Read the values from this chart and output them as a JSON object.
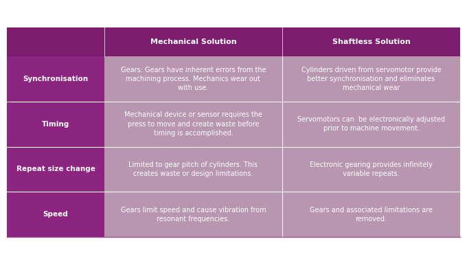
{
  "bg_color": "#ffffff",
  "header_bg": "#7B1C6E",
  "row_bg_dark": "#8B2580",
  "row_bg_light": "#B896B0",
  "header_text_color": "#ffffff",
  "row_label_color": "#ffffff",
  "cell_text_color": "#ffffff",
  "col_headers": [
    "Mechanical Solution",
    "Shaftless Solution"
  ],
  "rows": [
    {
      "label": "Synchronisation",
      "mechanical": "Gears: Gears have inherent errors from the\nmachining process. Mechanics wear out\nwith use.",
      "shaftless": "Cylinders driven from servomotor provide\nbetter synchronisation and eliminates\nmechanical wear"
    },
    {
      "label": "Timing",
      "mechanical": "Mechanical device or sensor requires the\npress to move and create waste before\ntiming is accomplished.",
      "shaftless": "Servomotors can  be electronically adjusted\nprior to machine movement."
    },
    {
      "label": "Repeat size change",
      "mechanical": "Limited to gear pitch of cylinders. This\ncreates waste or design limitations.",
      "shaftless": "Electronic gearing provides infinitely\nvariable repeats."
    },
    {
      "label": "Speed",
      "mechanical": "Gears limit speed and cause vibration from\nresonant frequencies.",
      "shaftless": "Gears and associated limitations are\nremoved."
    }
  ],
  "font_size_header": 8.0,
  "font_size_label": 7.5,
  "font_size_cell": 7.0
}
